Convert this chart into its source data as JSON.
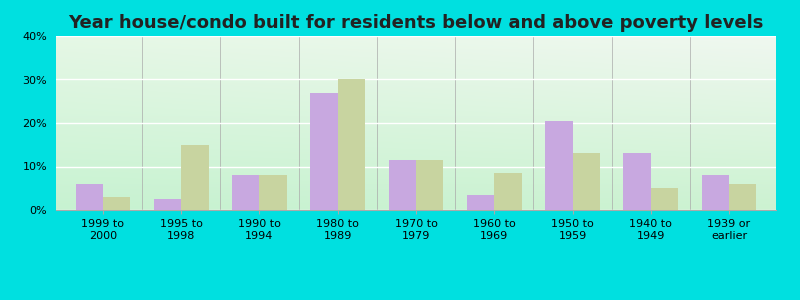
{
  "title": "Year house/condo built for residents below and above poverty levels",
  "categories": [
    "1999 to\n2000",
    "1995 to\n1998",
    "1990 to\n1994",
    "1980 to\n1989",
    "1970 to\n1979",
    "1960 to\n1969",
    "1950 to\n1959",
    "1940 to\n1949",
    "1939 or\nearlier"
  ],
  "below_poverty": [
    6.0,
    2.5,
    8.0,
    27.0,
    11.5,
    3.5,
    20.5,
    13.0,
    8.0
  ],
  "above_poverty": [
    3.0,
    15.0,
    8.0,
    30.0,
    11.5,
    8.5,
    13.0,
    5.0,
    6.0
  ],
  "below_color": "#c8a8e0",
  "above_color": "#c8d4a0",
  "background_outer": "#00e0e0",
  "bg_top_left": "#c8f0d8",
  "bg_top_right": "#f0f8f0",
  "bg_bottom": "#d8f0d0",
  "ylim": [
    0,
    40
  ],
  "yticks": [
    0,
    10,
    20,
    30,
    40
  ],
  "title_fontsize": 13,
  "tick_fontsize": 8,
  "legend_fontsize": 9,
  "bar_width": 0.35
}
